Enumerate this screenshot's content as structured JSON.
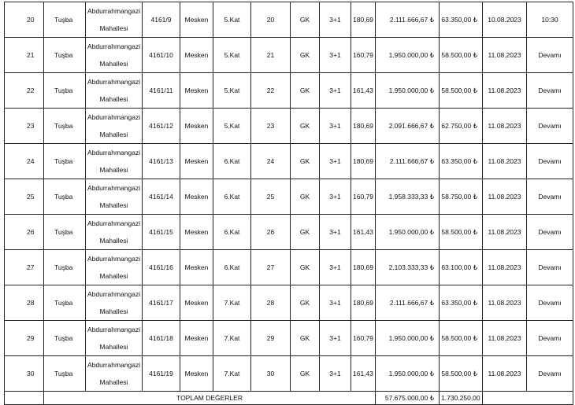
{
  "table": {
    "rows": [
      [
        "20",
        "Tuşba",
        "Abdurrahmangazi Mahallesi",
        "4161/9",
        "Mesken",
        "5.Kat",
        "20",
        "GK",
        "3+1",
        "180,69",
        "2.111.666,67 ₺",
        "63.350,00 ₺",
        "10.08.2023",
        "10:30"
      ],
      [
        "21",
        "Tuşba",
        "Abdurrahmangazi Mahallesi",
        "4161/10",
        "Mesken",
        "5.Kat",
        "21",
        "GK",
        "3+1",
        "160,79",
        "1.950.000,00 ₺",
        "58.500,00 ₺",
        "11.08.2023",
        "Devamı"
      ],
      [
        "22",
        "Tuşba",
        "Abdurrahmangazi Mahallesi",
        "4161/11",
        "Mesken",
        "5.Kat",
        "22",
        "GK",
        "3+1",
        "161,43",
        "1.950.000,00 ₺",
        "58.500,00 ₺",
        "11.08.2023",
        "Devamı"
      ],
      [
        "23",
        "Tuşba",
        "Abdurrahmangazi Mahallesi",
        "4161/12",
        "Mesken",
        "5.Kat",
        "23",
        "GK",
        "3+1",
        "180,69",
        "2.091.666,67 ₺",
        "62.750,00 ₺",
        "11.08.2023",
        "Devamı"
      ],
      [
        "24",
        "Tuşba",
        "Abdurrahmangazi Mahallesi",
        "4161/13",
        "Mesken",
        "6.Kat",
        "24",
        "GK",
        "3+1",
        "180,69",
        "2.111.666,67 ₺",
        "63.350,00 ₺",
        "11.08.2023",
        "Devamı"
      ],
      [
        "25",
        "Tuşba",
        "Abdurrahmangazi Mahallesi",
        "4161/14",
        "Mesken",
        "6.Kat",
        "25",
        "GK",
        "3+1",
        "160,79",
        "1.958.333,33 ₺",
        "58.750,00 ₺",
        "11.08.2023",
        "Devamı"
      ],
      [
        "26",
        "Tuşba",
        "Abdurrahmangazi Mahallesi",
        "4161/15",
        "Mesken",
        "6.Kat",
        "26",
        "GK",
        "3+1",
        "161,43",
        "1.950.000,00 ₺",
        "58.500,00 ₺",
        "11.08.2023",
        "Devamı"
      ],
      [
        "27",
        "Tuşba",
        "Abdurrahmangazi Mahallesi",
        "4161/16",
        "Mesken",
        "6.Kat",
        "27",
        "GK",
        "3+1",
        "180,69",
        "2.103.333,33 ₺",
        "63.100,00 ₺",
        "11.08.2023",
        "Devamı"
      ],
      [
        "28",
        "Tuşba",
        "Abdurrahmangazi Mahallesi",
        "4161/17",
        "Mesken",
        "7.Kat",
        "28",
        "GK",
        "3+1",
        "180,69",
        "2.111.666,67 ₺",
        "63.350,00 ₺",
        "11.08.2023",
        "Devamı"
      ],
      [
        "29",
        "Tuşba",
        "Abdurrahmangazi Mahallesi",
        "4161/18",
        "Mesken",
        "7.Kat",
        "29",
        "GK",
        "3+1",
        "160,79",
        "1.950.000,00 ₺",
        "58.500,00 ₺",
        "11.08.2023",
        "Devamı"
      ],
      [
        "30",
        "Tuşba",
        "Abdurrahmangazi Mahallesi",
        "4161/19",
        "Mesken",
        "7.Kat",
        "30",
        "GK",
        "3+1",
        "161,43",
        "1.950.000,00 ₺",
        "58.500,00 ₺",
        "11.08.2023",
        "Devamı"
      ]
    ],
    "total": {
      "label": "TOPLAM DEĞERLER",
      "price": "57.675.000,00 ₺",
      "deposit": "1.730.250,00 ₺"
    }
  }
}
